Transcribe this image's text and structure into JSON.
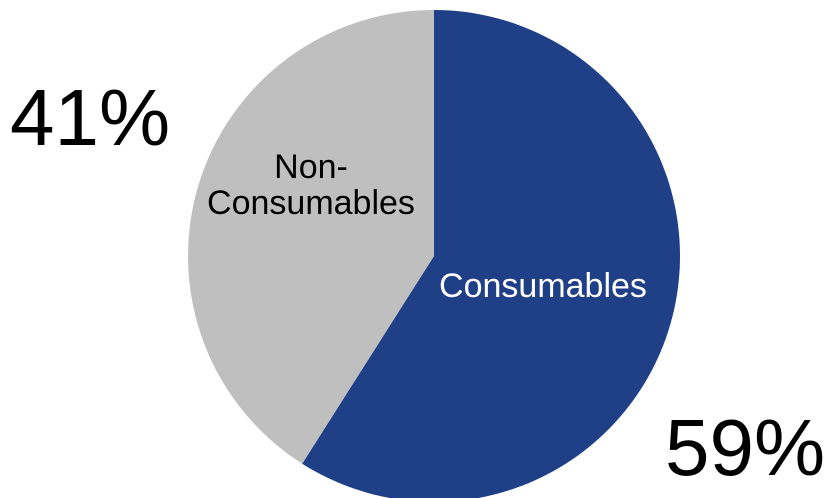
{
  "chart_data": {
    "type": "pie",
    "slices": [
      {
        "label": "Consumables",
        "value": 59,
        "value_label": "59%",
        "color": "#1f3f86",
        "text_color": "#ffffff"
      },
      {
        "label_line1": "Non-",
        "label_line2": "Consumables",
        "label": "Non-Consumables",
        "value": 41,
        "value_label": "41%",
        "color": "#bfbfbf",
        "text_color": "#000000"
      }
    ],
    "start": "12 o'clock",
    "direction": "clockwise",
    "legend": "none"
  }
}
